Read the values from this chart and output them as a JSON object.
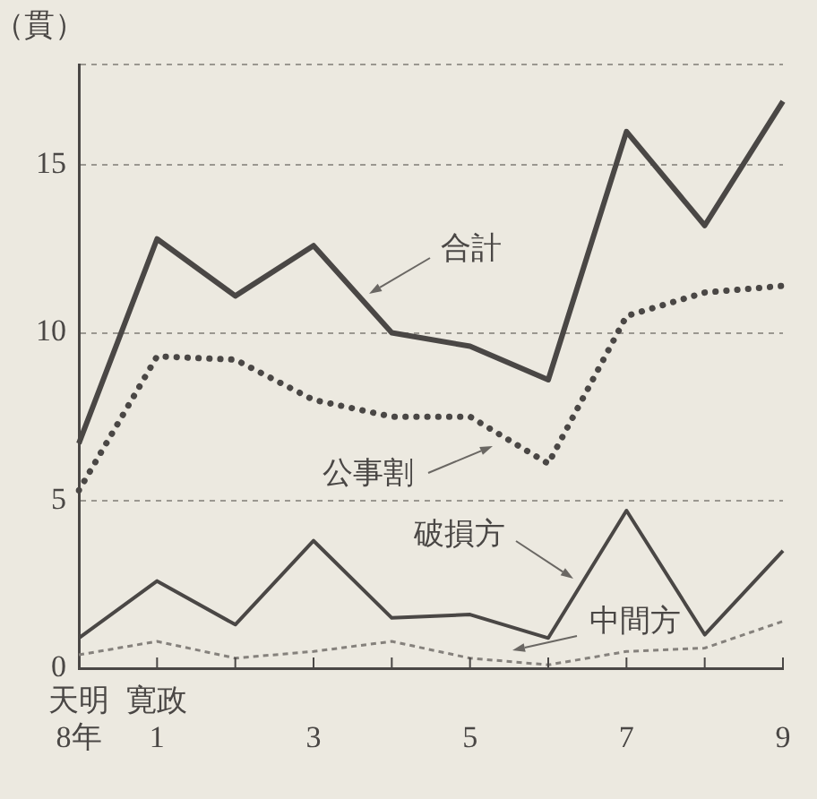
{
  "chart_data": {
    "type": "line",
    "ylabel": "（貫）",
    "categories": [
      "天明\n8年",
      "寛政\n1",
      null,
      "3",
      null,
      "5",
      null,
      "7",
      null,
      "9"
    ],
    "series": [
      {
        "name": "合計",
        "color": "#4a4745",
        "line_style": "solid",
        "values": [
          6.7,
          12.8,
          11.1,
          12.6,
          10.0,
          9.6,
          8.6,
          16.0,
          13.2,
          16.9
        ]
      },
      {
        "name": "公事割",
        "color": "#4a4745",
        "line_style": "dotted",
        "values": [
          5.3,
          9.3,
          9.2,
          8.0,
          7.5,
          7.5,
          6.1,
          10.5,
          11.2,
          11.4
        ]
      },
      {
        "name": "破損方",
        "color": "#4a4745",
        "line_style": "solid",
        "values": [
          0.9,
          2.6,
          1.3,
          3.8,
          1.5,
          1.6,
          0.9,
          4.7,
          1.0,
          3.5
        ]
      },
      {
        "name": "中間方",
        "color": "#85817c",
        "line_style": "dashed",
        "values": [
          0.4,
          0.8,
          0.3,
          0.5,
          0.8,
          0.3,
          0.1,
          0.5,
          0.6,
          1.4
        ]
      }
    ],
    "ylim": [
      0,
      18
    ],
    "yticks": [
      0,
      5,
      10,
      15,
      {
        "value": 18,
        "label": null
      }
    ],
    "grid": "y",
    "marker": "none"
  }
}
